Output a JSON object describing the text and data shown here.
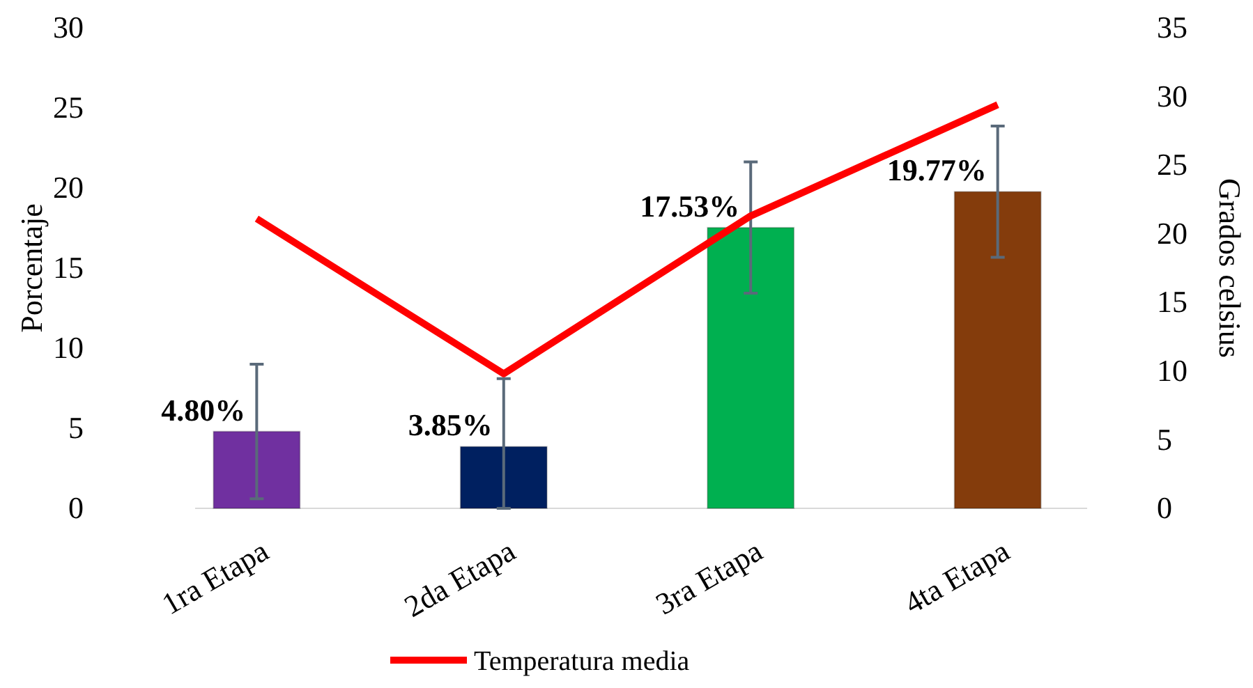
{
  "chart_data": {
    "type": "bar",
    "categories": [
      "1ra Etapa",
      "2da Etapa",
      "3ra Etapa",
      "4ta Etapa"
    ],
    "series": [
      {
        "colors": [
          "#7030a0",
          "#002060",
          "#00b050",
          "#843c0c"
        ],
        "values": [
          4.8,
          3.85,
          17.53,
          19.77
        ],
        "value_labels": [
          "4.80%",
          "3.85%",
          "17.53%",
          "19.77%"
        ],
        "errors": [
          4.2,
          [
            0,
            8.1
          ],
          4.1,
          4.1
        ]
      },
      {
        "type": "line",
        "name": "Temperatura media",
        "color": "#ff0000",
        "axis": "y2",
        "values": [
          21.1,
          9.8,
          21.3,
          29.4
        ]
      }
    ],
    "ylabel": "Porcentaje",
    "y2label": "Grados celsius",
    "ylim": [
      0,
      30
    ],
    "yticks": [
      0,
      5,
      10,
      15,
      20,
      25,
      30
    ],
    "y2lim": [
      0,
      35
    ],
    "y2ticks": [
      0,
      5,
      10,
      15,
      20,
      25,
      30,
      35
    ],
    "grid": false,
    "legend": "bottom"
  }
}
